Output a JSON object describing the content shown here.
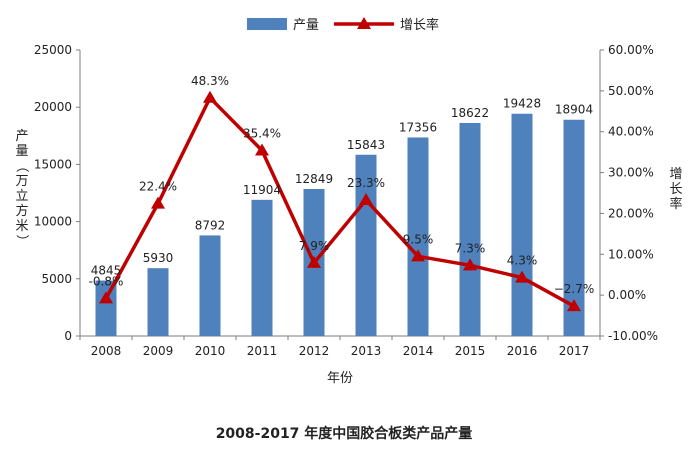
{
  "chart_data": {
    "type": "bar+line",
    "title": "2008-2017 年度中国胶合板类产品产量",
    "xlabel": "年份",
    "ylabel": "产量（万立方米）",
    "y2label": "增长率",
    "categories": [
      "2008",
      "2009",
      "2010",
      "2011",
      "2012",
      "2013",
      "2014",
      "2015",
      "2016",
      "2017"
    ],
    "series": [
      {
        "name": "产量",
        "type": "bar",
        "axis": "left",
        "color": "#4f81bd",
        "values": [
          4845,
          5930,
          8792,
          11904,
          12849,
          15843,
          17356,
          18622,
          19428,
          18904
        ],
        "labels": [
          "4845",
          "5930",
          "8792",
          "11904",
          "12849",
          "15843",
          "17356",
          "18622",
          "19428",
          "18904"
        ]
      },
      {
        "name": "增长率",
        "type": "line",
        "axis": "right",
        "color": "#c00000",
        "values": [
          -0.8,
          22.4,
          48.3,
          35.4,
          7.9,
          23.3,
          9.5,
          7.3,
          4.3,
          -2.7
        ],
        "labels": [
          "-0.8%",
          "22.4%",
          "48.3%",
          "35.4%",
          "7.9%",
          "23.3%",
          "9.5%",
          "7.3%",
          "4.3%",
          "−2.7%"
        ]
      }
    ],
    "ylim": [
      0,
      25000
    ],
    "y_ticks": [
      "0",
      "5000",
      "10000",
      "15000",
      "20000",
      "25000"
    ],
    "y2lim": [
      -10,
      60
    ],
    "y2_ticks": [
      "-10.00%",
      "0.00%",
      "10.00%",
      "20.00%",
      "30.00%",
      "40.00%",
      "50.00%",
      "60.00%"
    ],
    "grid": false,
    "legend": "top-center"
  }
}
